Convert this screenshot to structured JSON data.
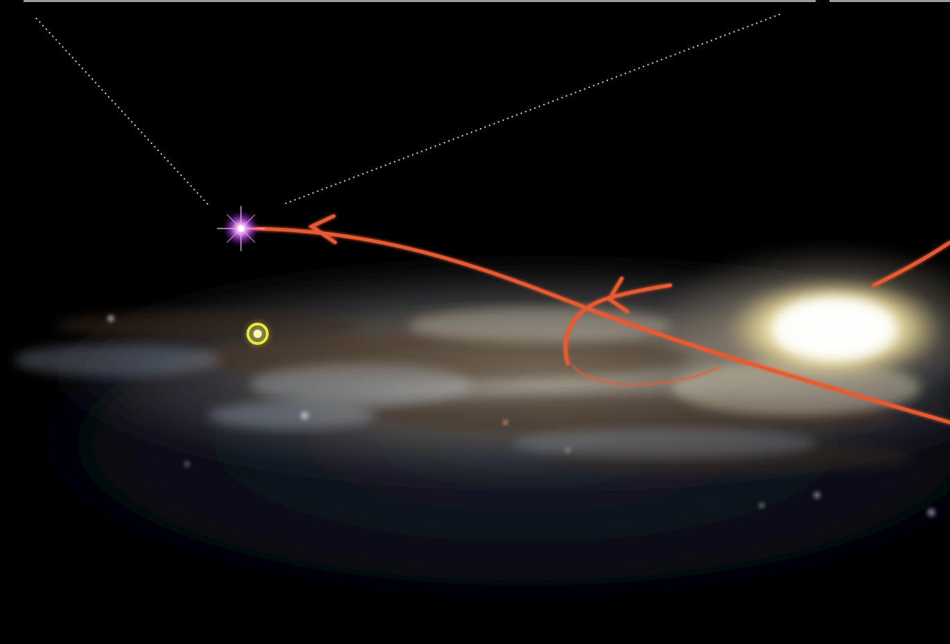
{
  "scene": {
    "description_free": true,
    "colors": {
      "background": "#000000",
      "galaxy_core": "#fffbe0",
      "galaxy_dust": "#5a4630",
      "galaxy_gas": "#a8b4c0",
      "trajectory": "#e85a30",
      "hypervelocity_star": "#e070ff",
      "sun_marker": "#e8e840",
      "dotted_lines": "#ffffff",
      "top_frame": "#9a9a9a"
    },
    "icons": {
      "hypervelocity_star": "purple-star-icon",
      "sun_marker": "yellow-ring-icon",
      "direction_arrow": "arrowhead-icon"
    }
  }
}
